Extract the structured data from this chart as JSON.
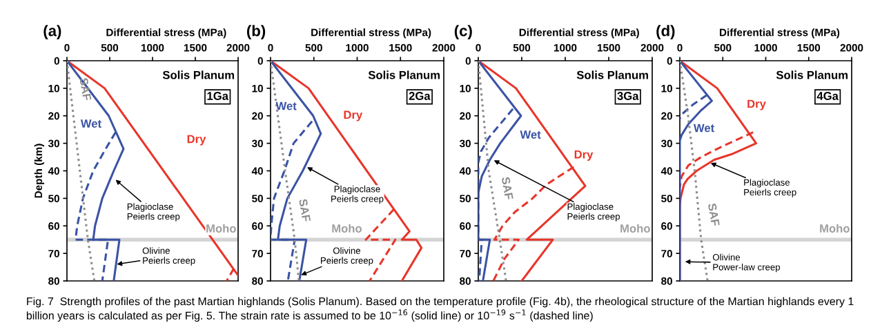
{
  "chart_data": [
    {
      "type": "line",
      "title": "(a)",
      "xlabel": "Differential stress (MPa)",
      "ylabel": "Depth (km)",
      "xlim": [
        0,
        2000
      ],
      "xticks": [
        0,
        500,
        1000,
        1500,
        2000
      ],
      "ylim": [
        80,
        0
      ],
      "yticks": [
        0,
        10,
        20,
        30,
        40,
        50,
        60,
        70,
        80
      ],
      "series": [
        {
          "name": "Dry",
          "color": "#e8352a",
          "line_style": "solid",
          "x": [
            0,
            440,
            2000
          ],
          "values": [
            0,
            10,
            78
          ]
        },
        {
          "color": "#e8352a",
          "line_style": "dashed",
          "x": [
            1950,
            1867
          ],
          "values": [
            75.5,
            80
          ]
        },
        {
          "name": "Wet",
          "color": "#3a53a4",
          "line_style": "solid",
          "x": [
            0,
            488,
            661,
            547,
            413,
            328,
            307,
            613,
            547
          ],
          "values": [
            0,
            20,
            32,
            40,
            50,
            60,
            65,
            65,
            80
          ]
        },
        {
          "color": "#3a53a4",
          "line_style": "dashed",
          "x": [
            568,
            453,
            307,
            187,
            120,
            100,
            480,
            413
          ],
          "values": [
            26,
            32,
            40,
            50,
            60,
            65,
            65,
            80
          ]
        },
        {
          "name": "SAF",
          "color": "#8c8c8c",
          "line_style": "dotted",
          "x": [
            0,
            245,
            320
          ],
          "values": [
            0,
            65,
            80
          ]
        }
      ],
      "ref_lines": [
        {
          "axis": "y",
          "value": 65,
          "label": "Moho",
          "color": "#d4d4d4"
        }
      ],
      "annotations": [
        "Solis Planum",
        "1Ga",
        {
          "text": "Plagioclase\nPeierls creep",
          "x": 560,
          "y": 43
        },
        {
          "text": "Olivine\nPeierls creep",
          "x": 573,
          "y": 74
        },
        "Fig. 7  Strength profiles of the past Martian highlands (Solis Planum). Based on the temperature profile (Fig. 4b), the rheological structure of the Martian highlands every 1 billion years is calculated as per Fig. 5. The strain rate is assumed to be 10$^{−16}$ (solid line) or 10$^{−19}$ s$^{−1}$ (dashed line)"
      ]
    },
    {
      "type": "line",
      "title": "(b)",
      "xlabel": "Differential stress (MPa)",
      "xlim": [
        0,
        2000
      ],
      "xticks": [
        0,
        500,
        1000,
        1500,
        2000
      ],
      "ylim": [
        80,
        0
      ],
      "yticks": [
        0,
        10,
        20,
        30,
        40,
        50,
        60,
        70,
        80
      ],
      "series": [
        {
          "name": "Dry",
          "color": "#e8352a",
          "line_style": "solid",
          "x": [
            0,
            439,
            1604,
            1516,
            1683,
            1742,
            1516
          ],
          "values": [
            0,
            10,
            62,
            65,
            65,
            68,
            80
          ]
        },
        {
          "color": "#e8352a",
          "line_style": "dashed",
          "x": [
            1423,
            1100,
            1441,
            1144
          ],
          "values": [
            54,
            65,
            65,
            80
          ]
        },
        {
          "name": "Wet",
          "color": "#3a53a4",
          "line_style": "solid",
          "x": [
            0,
            492,
            580,
            372,
            194,
            106,
            85,
            412,
            332
          ],
          "values": [
            0,
            20,
            26.5,
            40,
            50,
            60,
            65,
            65,
            80
          ]
        },
        {
          "color": "#3a53a4",
          "line_style": "dashed",
          "x": [
            479,
            266,
            160,
            40,
            8,
            0,
            279,
            200
          ],
          "values": [
            22,
            30,
            40,
            50,
            60,
            65,
            65,
            80
          ]
        },
        {
          "name": "SAF",
          "color": "#8c8c8c",
          "line_style": "dotted",
          "x": [
            0,
            168,
            279,
            327
          ],
          "values": [
            0,
            40,
            65,
            80
          ]
        }
      ],
      "ref_lines": [
        {
          "axis": "y",
          "value": 65,
          "label": "Moho",
          "color": "#d4d4d4"
        }
      ],
      "annotations": [
        "Solis Planum",
        "2Ga",
        {
          "text": "Plagioclase\nPeierls creep",
          "x": 412,
          "y": 38.5
        },
        {
          "text": "Olivine\nPeierls creep",
          "x": 343,
          "y": 78
        }
      ]
    },
    {
      "type": "line",
      "title": "(c)",
      "xlabel": "Differential stress (MPa)",
      "xlim": [
        0,
        2000
      ],
      "xticks": [
        0,
        500,
        1000,
        1500,
        2000
      ],
      "ylim": [
        80,
        0
      ],
      "yticks": [
        0,
        10,
        20,
        30,
        40,
        50,
        60,
        70,
        80
      ],
      "series": [
        {
          "name": "Dry",
          "color": "#e8352a",
          "line_style": "solid",
          "x": [
            0,
            433,
            1230,
            558,
            858,
            499
          ],
          "values": [
            0,
            10,
            45.5,
            65,
            65,
            80
          ]
        },
        {
          "color": "#e8352a",
          "line_style": "dashed",
          "x": [
            1097,
            783,
            624,
            420,
            279,
            186,
            465,
            300,
            173
          ],
          "values": [
            38.6,
            45,
            50,
            55,
            60,
            65,
            65,
            72,
            80
          ]
        },
        {
          "name": "Wet",
          "color": "#3a53a4",
          "line_style": "solid",
          "x": [
            0,
            491,
            252,
            133,
            40,
            0,
            0,
            133,
            53
          ],
          "values": [
            0,
            20,
            30,
            36,
            42,
            48,
            65,
            65,
            80
          ]
        },
        {
          "color": "#3a53a4",
          "line_style": "dashed",
          "x": [
            398,
            120,
            30,
            0,
            0,
            40,
            10
          ],
          "values": [
            17.5,
            28,
            33,
            37,
            65,
            65,
            80
          ]
        },
        {
          "name": "SAF",
          "color": "#8c8c8c",
          "line_style": "dotted",
          "x": [
            0,
            120,
            247,
            319
          ],
          "values": [
            0,
            40,
            65,
            80
          ]
        }
      ],
      "ref_lines": [
        {
          "axis": "y",
          "value": 65,
          "label": "Moho",
          "color": "#d4d4d4"
        }
      ],
      "annotations": [
        "Solis Planum",
        "3Ga",
        {
          "text": "Plagioclase\nPeierls creep",
          "x": 170,
          "y": 36
        }
      ]
    },
    {
      "type": "line",
      "title": "(d)",
      "xlabel": "Differential stress (MPa)",
      "xlim": [
        0,
        2000
      ],
      "xticks": [
        0,
        500,
        1000,
        1500,
        2000
      ],
      "ylim": [
        80,
        0
      ],
      "yticks": [
        0,
        10,
        20,
        30,
        40,
        50,
        60,
        70,
        80
      ],
      "series": [
        {
          "name": "Dry",
          "color": "#e8352a",
          "line_style": "solid",
          "x": [
            0,
            435,
            888,
            600,
            400,
            195,
            90,
            48,
            8,
            0,
            0
          ],
          "values": [
            0,
            10,
            30,
            34,
            36,
            40,
            43,
            45,
            50,
            53,
            80
          ]
        },
        {
          "color": "#e8352a",
          "line_style": "dashed",
          "x": [
            853,
            501,
            248,
            100,
            21,
            0
          ],
          "values": [
            26,
            31,
            35,
            38,
            42,
            46
          ]
        },
        {
          "name": "Wet",
          "color": "#3a53a4",
          "line_style": "solid",
          "x": [
            0,
            373,
            248,
            100,
            21,
            0,
            0
          ],
          "values": [
            0,
            14.6,
            18,
            23,
            27,
            29,
            80
          ]
        },
        {
          "color": "#3a53a4",
          "line_style": "dashed",
          "x": [
            315,
            150,
            40,
            0
          ],
          "values": [
            12.5,
            16,
            19,
            21
          ]
        },
        {
          "name": "SAF",
          "color": "#8c8c8c",
          "line_style": "dotted",
          "x": [
            0,
            96,
            173,
            248,
            323
          ],
          "values": [
            0,
            20,
            40,
            65,
            80
          ]
        }
      ],
      "ref_lines": [
        {
          "axis": "y",
          "value": 65,
          "label": "Moho",
          "color": "#d4d4d4"
        }
      ],
      "annotations": [
        "Solis Planum",
        "4Ga",
        {
          "text": "Plagioclase\nPeierls creep",
          "x": 349,
          "y": 37
        },
        {
          "text": "Olivine\nPower-law creep",
          "x": 50,
          "y": 73
        }
      ]
    }
  ]
}
